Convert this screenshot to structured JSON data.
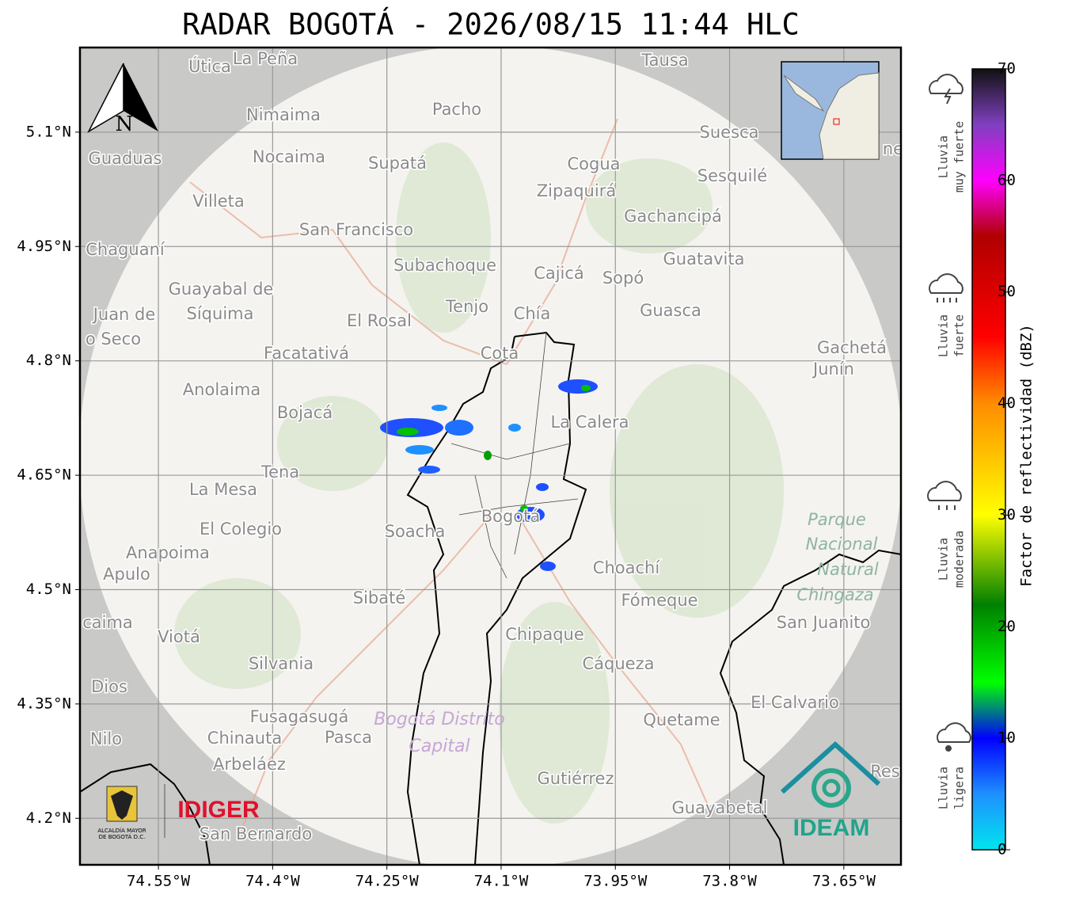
{
  "title": "RADAR BOGOTÁ - 2026/08/15 11:44 HLC",
  "map": {
    "xlim": [
      -74.653,
      -73.575
    ],
    "ylim": [
      4.139,
      5.211
    ],
    "grid": true,
    "xticks": [
      {
        "value": -74.55,
        "label": "74.55°W"
      },
      {
        "value": -74.4,
        "label": "74.4°W"
      },
      {
        "value": -74.25,
        "label": "74.25°W"
      },
      {
        "value": -74.1,
        "label": "74.1°W"
      },
      {
        "value": -73.95,
        "label": "73.95°W"
      },
      {
        "value": -73.8,
        "label": "73.8°W"
      },
      {
        "value": -73.65,
        "label": "73.65°W"
      }
    ],
    "yticks": [
      {
        "value": 5.1,
        "label": "5.1°N"
      },
      {
        "value": 4.95,
        "label": "4.95°N"
      },
      {
        "value": 4.8,
        "label": "4.8°N"
      },
      {
        "value": 4.65,
        "label": "4.65°N"
      },
      {
        "value": 4.5,
        "label": "4.5°N"
      },
      {
        "value": 4.35,
        "label": "4.35°N"
      },
      {
        "value": 4.2,
        "label": "4.2°N"
      }
    ],
    "north": "N",
    "places": [
      "Útica",
      "La Peña",
      "Tausa",
      "Pacho",
      "Nimaima",
      "Guaduas",
      "Nocaima",
      "Supatá",
      "Cogua",
      "Suesca",
      "Sesquilé",
      "Villeta",
      "Zipaquirá",
      "Gachancipá",
      "San Francisco",
      "Chaguaní",
      "Guatavita",
      "Subachoque",
      "Cajicá",
      "Sopó",
      "Guayabal de",
      "Síquima",
      "Tenjo",
      "Chía",
      "Guasca",
      "Juan de",
      "o Seco",
      "El Rosal",
      "Facatativá",
      "Cota",
      "Gachetá",
      "Junín",
      "Anolaima",
      "Bojacá",
      "La Calera",
      "Tena",
      "La Mesa",
      "El Colegio",
      "Soacha",
      "Bogotá",
      "Anapoima",
      "Apulo",
      "Choachí",
      "Sibaté",
      "Fómeque",
      "San Juanito",
      "caima",
      "Viotá",
      "Chipaque",
      "Silvania",
      "Cáqueza",
      "Dios",
      "El Calvario",
      "Fusagasugá",
      "Quetame",
      "Nilo",
      "Chinauta",
      "Pasca",
      "Arbeláez",
      "Res",
      "Gutiérrez",
      "Guayabetal",
      "San Bernardo",
      "ne"
    ],
    "park": [
      "Parque",
      "Nacional",
      "Natural",
      "Chingaza"
    ],
    "district": [
      "Bogotá Distrito",
      "Capital"
    ]
  },
  "logos": {
    "alcaldia": [
      "ALCALDÍA MAYOR",
      "DE BOGOTÁ D.C."
    ],
    "idiger": "IDIGER",
    "ideam": "IDEAM"
  },
  "colorbar": {
    "lim": [
      0,
      70
    ],
    "ticks": [
      0,
      10,
      20,
      30,
      40,
      50,
      60,
      70
    ],
    "label": "Factor de reflectividad (dBZ)",
    "stops": [
      {
        "value": 0,
        "color": "#00e5ee"
      },
      {
        "value": 5,
        "color": "#1e90ff"
      },
      {
        "value": 10,
        "color": "#0000ff"
      },
      {
        "value": 15,
        "color": "#00ff00"
      },
      {
        "value": 22,
        "color": "#008000"
      },
      {
        "value": 30,
        "color": "#ffff00"
      },
      {
        "value": 40,
        "color": "#ff8c00"
      },
      {
        "value": 46,
        "color": "#ff0000"
      },
      {
        "value": 55,
        "color": "#b00000"
      },
      {
        "value": 60,
        "color": "#ff00ff"
      },
      {
        "value": 65,
        "color": "#8040c0"
      },
      {
        "value": 70,
        "color": "#111111"
      }
    ]
  },
  "rain_levels": [
    [
      "Lluvia",
      "muy fuerte"
    ],
    [
      "Lluvia",
      "fuerte"
    ],
    [
      "Lluvia",
      "moderada"
    ],
    [
      "Lluvia",
      "ligera"
    ]
  ]
}
